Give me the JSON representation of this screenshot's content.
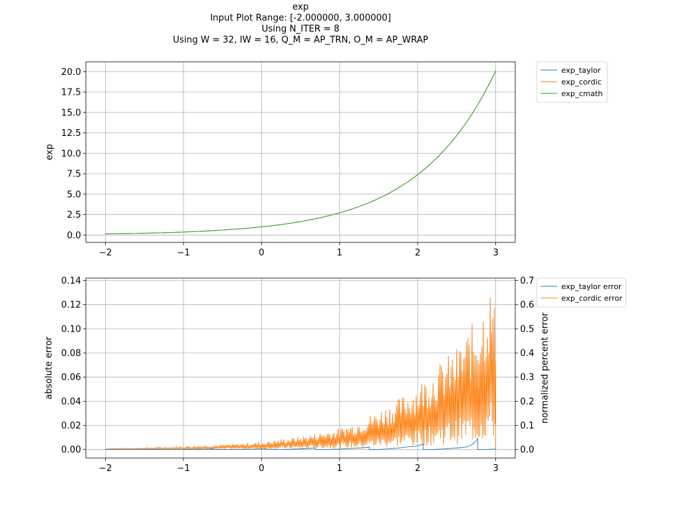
{
  "title_lines": [
    "exp",
    "Input Plot Range: [-2.000000, 3.000000]",
    "Using N_ITER = 8",
    "Using W = 32, IW = 16, Q_M = AP_TRN, O_M = AP_WRAP"
  ],
  "colors": {
    "blue": "#1f77b4",
    "orange": "#ff7f0e",
    "green": "#2ca02c",
    "grid": "#b0b0b0"
  },
  "chart_data": [
    {
      "type": "line",
      "ylabel": "exp",
      "xlim": [
        -2.25,
        3.25
      ],
      "ylim": [
        -0.9,
        21.2
      ],
      "xticks": [
        -2,
        -1,
        0,
        1,
        2,
        3
      ],
      "xtick_labels": [
        "−2",
        "−1",
        "0",
        "1",
        "2",
        "3"
      ],
      "yticks": [
        0,
        2.5,
        5,
        7.5,
        10,
        12.5,
        15,
        17.5,
        20
      ],
      "ytick_labels": [
        "0.0",
        "2.5",
        "5.0",
        "7.5",
        "10.0",
        "12.5",
        "15.0",
        "17.5",
        "20.0"
      ],
      "grid": true,
      "legend_placement": "outside-top-right",
      "x": [
        -2,
        -1.5,
        -1,
        -0.5,
        0,
        0.5,
        1,
        1.5,
        2,
        2.25,
        2.5,
        2.75,
        3
      ],
      "series": [
        {
          "name": "exp_taylor",
          "color": "#1f77b4",
          "values": [
            0.135,
            0.223,
            0.368,
            0.607,
            1.0,
            1.649,
            2.718,
            4.482,
            7.389,
            9.488,
            12.18,
            15.64,
            20.09
          ]
        },
        {
          "name": "exp_cordic",
          "color": "#ff7f0e",
          "values": [
            0.135,
            0.223,
            0.368,
            0.607,
            1.0,
            1.649,
            2.718,
            4.482,
            7.389,
            9.488,
            12.18,
            15.64,
            20.09
          ]
        },
        {
          "name": "exp_cmath",
          "color": "#2ca02c",
          "values": [
            0.135,
            0.223,
            0.368,
            0.607,
            1.0,
            1.649,
            2.718,
            4.482,
            7.389,
            9.488,
            12.18,
            15.64,
            20.09
          ]
        }
      ]
    },
    {
      "type": "line",
      "ylabel": "absolute error",
      "ylabel_right": "normalized percent error",
      "xlim": [
        -2.25,
        3.25
      ],
      "ylim": [
        -0.007,
        0.142
      ],
      "ylim_right": [
        -0.035,
        0.71
      ],
      "xticks": [
        -2,
        -1,
        0,
        1,
        2,
        3
      ],
      "xtick_labels": [
        "−2",
        "−1",
        "0",
        "1",
        "2",
        "3"
      ],
      "yticks": [
        0,
        0.02,
        0.04,
        0.06,
        0.08,
        0.1,
        0.12,
        0.14
      ],
      "ytick_labels": [
        "0.00",
        "0.02",
        "0.04",
        "0.06",
        "0.08",
        "0.10",
        "0.12",
        "0.14"
      ],
      "yticks_right": [
        0,
        0.1,
        0.2,
        0.3,
        0.4,
        0.5,
        0.6,
        0.7
      ],
      "ytick_labels_right": [
        "0.0",
        "0.1",
        "0.2",
        "0.3",
        "0.4",
        "0.5",
        "0.6",
        "0.7"
      ],
      "grid": true,
      "legend_placement": "outside-top-right",
      "series": [
        {
          "name": "exp_taylor error",
          "color": "#1f77b4",
          "x": [
            -2,
            -1.31,
            -1.31,
            -0.62,
            -0.62,
            0.07,
            0.07,
            0.69,
            0.69,
            1.38,
            1.38,
            1.9,
            2.07,
            2.07,
            2.6,
            2.77,
            2.77,
            3.0
          ],
          "values": [
            0.0,
            0.0002,
            0.0,
            0.0004,
            0.0,
            0.0006,
            0.0,
            0.0012,
            0.0,
            0.002,
            0.0,
            0.0025,
            0.0045,
            0.0,
            0.002,
            0.009,
            0.0,
            0.0005
          ]
        },
        {
          "name": "exp_cordic error",
          "color": "#ff7f0e",
          "x": [
            -2,
            -1.5,
            -1,
            -0.5,
            0,
            0.5,
            1,
            1.25,
            1.5,
            1.75,
            2,
            2.25,
            2.5,
            2.75,
            2.85,
            2.92,
            2.97,
            3.0
          ],
          "peaks": [
            0.001,
            0.0015,
            0.0025,
            0.004,
            0.0065,
            0.011,
            0.018,
            0.024,
            0.033,
            0.042,
            0.055,
            0.07,
            0.085,
            0.11,
            0.125,
            0.137,
            0.13,
            0.11
          ]
        }
      ]
    }
  ]
}
